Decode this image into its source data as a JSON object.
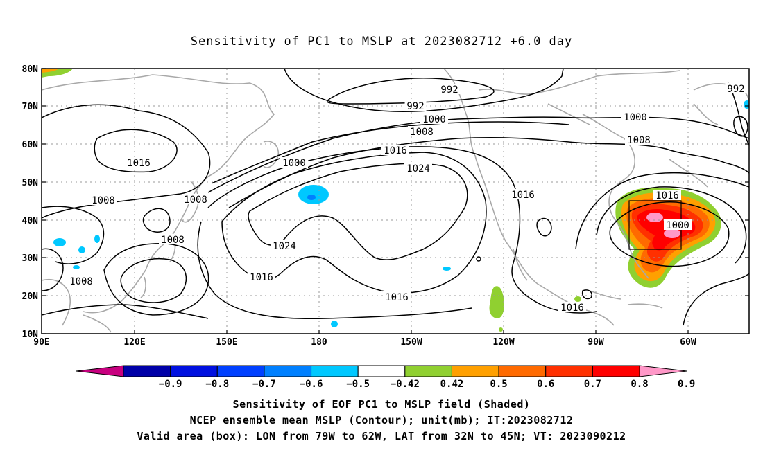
{
  "title": "Sensitivity of PC1 to MSLP at 2023082712 +6.0 day",
  "map": {
    "lat_ticks": [
      "80N",
      "70N",
      "60N",
      "50N",
      "40N",
      "30N",
      "20N",
      "10N"
    ],
    "lon_ticks": [
      "90E",
      "120E",
      "150E",
      "180",
      "150W",
      "120W",
      "90W",
      "60W"
    ],
    "contour_labels": [
      "992",
      "992",
      "992",
      "1000",
      "1000",
      "1000",
      "1008",
      "1008",
      "1008",
      "1008",
      "1008",
      "1016",
      "1016",
      "1016",
      "1016",
      "1016",
      "1016",
      "1016",
      "1024",
      "1024",
      "1000",
      "1008"
    ],
    "box": {
      "lon_from": "79W",
      "lon_to": "62W",
      "lat_from": "32N",
      "lat_to": "45N"
    }
  },
  "colorbar": {
    "labels": [
      "-0.9",
      "-0.8",
      "-0.7",
      "-0.6",
      "-0.5",
      "-0.42",
      "0.42",
      "0.5",
      "0.6",
      "0.7",
      "0.8",
      "0.9"
    ],
    "colors": [
      "#c8007f",
      "#0000a8",
      "#0010e0",
      "#0040ff",
      "#0080ff",
      "#00c8ff",
      "#ffffff",
      "#90d030",
      "#ffa000",
      "#ff6a00",
      "#ff3000",
      "#ff0000",
      "#ff98c8"
    ]
  },
  "captions": {
    "line1": "Sensitivity of EOF PC1 to MSLP field (Shaded)",
    "line2": "NCEP ensemble mean MSLP (Contour); unit(mb); IT:2023082712",
    "line3": "Valid area (box): LON from 79W to 62W, LAT from 32N to 45N; VT: 2023090212"
  }
}
